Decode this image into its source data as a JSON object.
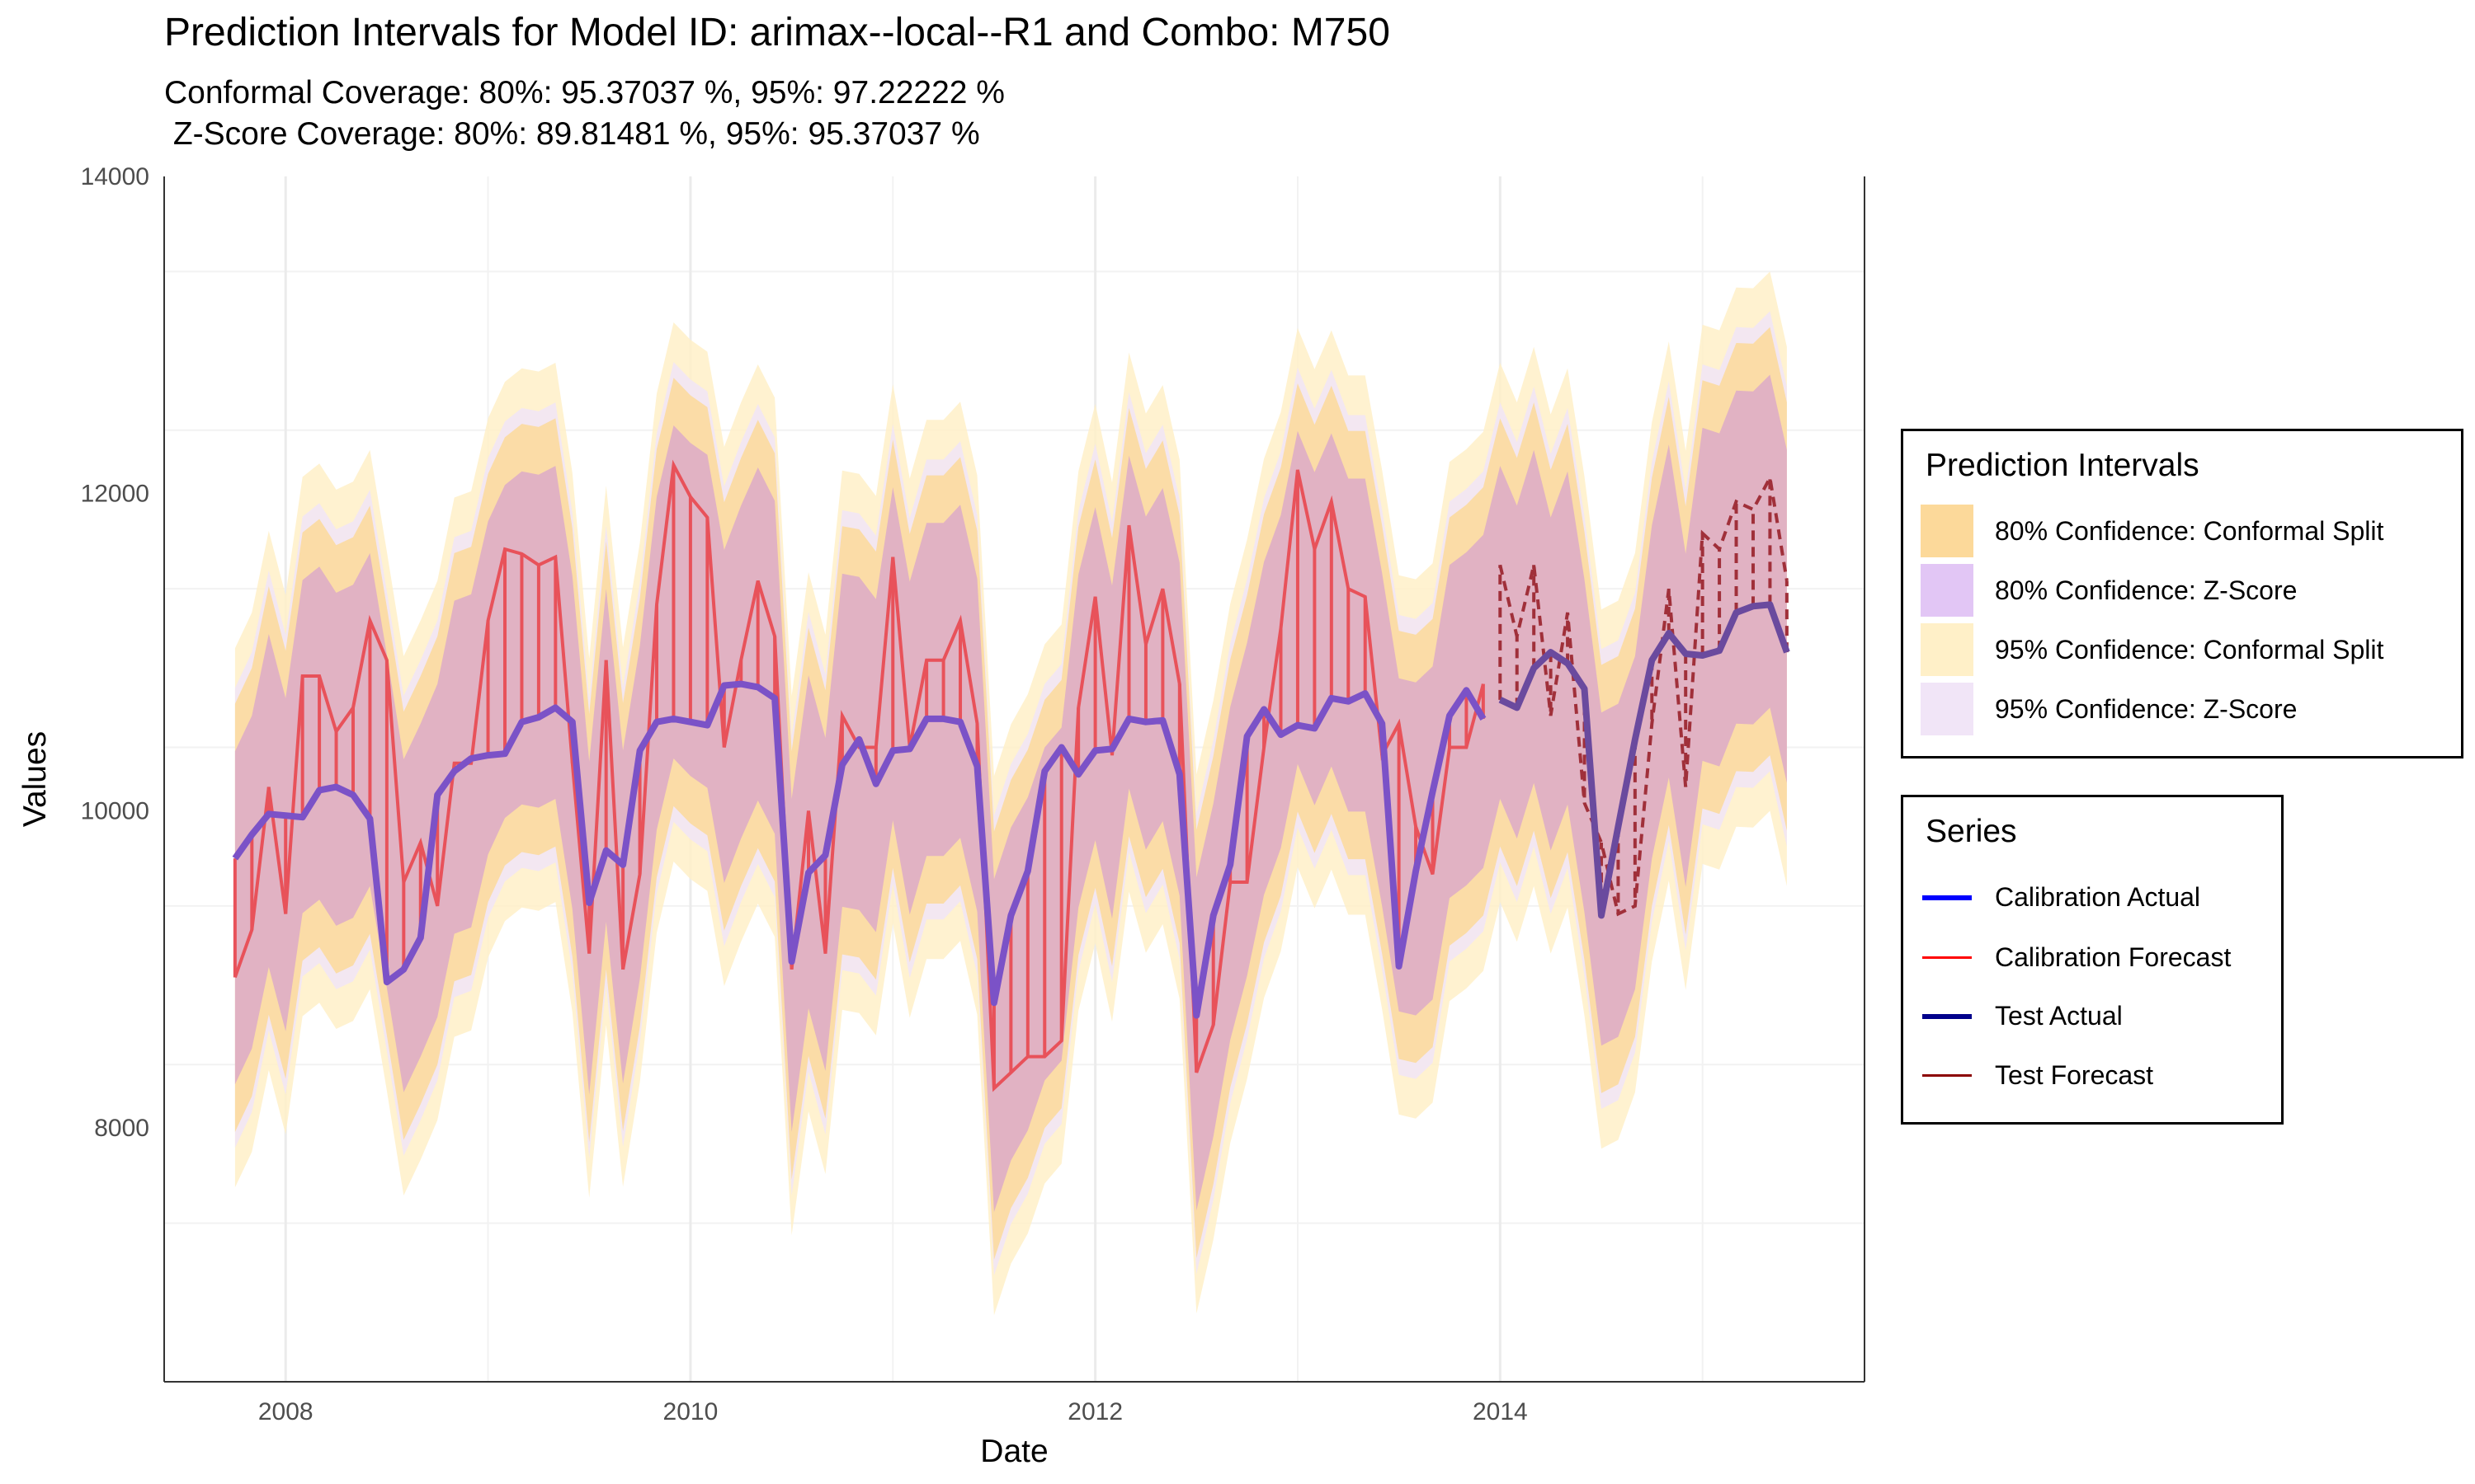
{
  "title": "Prediction Intervals for Model ID: arimax--local--R1 and Combo: M750",
  "subtitle": "Conformal Coverage: 80%: 95.37037 %, 95%: 97.22222 %\n Z-Score Coverage: 80%: 89.81481 %, 95%: 95.37037 %",
  "legend_intervals": {
    "title": "Prediction Intervals",
    "items": [
      {
        "label": "80% Confidence: Conformal Split",
        "color": "#fcd99a"
      },
      {
        "label": "80% Confidence: Z-Score",
        "color": "#e2c6f5"
      },
      {
        "label": "95% Confidence: Conformal Split",
        "color": "#fff0c8"
      },
      {
        "label": "95% Confidence: Z-Score",
        "color": "#f1e5f7"
      }
    ]
  },
  "legend_series": {
    "title": "Series",
    "items": [
      {
        "label": "Calibration Actual",
        "color": "#0000ff"
      },
      {
        "label": "Calibration Forecast",
        "color": "#ff0000"
      },
      {
        "label": "Test Actual",
        "color": "#00008b"
      },
      {
        "label": "Test Forecast",
        "color": "#8b0000"
      }
    ]
  },
  "chart_data": {
    "type": "line",
    "xlabel": "Date",
    "ylabel": "Values",
    "xlim": [
      2007.4,
      2015.8
    ],
    "ylim": [
      6400,
      14000
    ],
    "x_ticks": [
      "2008",
      "2010",
      "2012",
      "2014"
    ],
    "x_tick_values": [
      2008,
      2010,
      2012,
      2014
    ],
    "y_ticks": [
      "8000",
      "10000",
      "12000",
      "14000"
    ],
    "y_tick_values": [
      8000,
      10000,
      12000,
      14000
    ],
    "grid": true,
    "legend_position": "right",
    "actual": {
      "start": 2007.75,
      "step": 0.08333,
      "calibration_end_index": 74,
      "values": [
        9700,
        9850,
        9980,
        9970,
        9960,
        10130,
        10150,
        10100,
        9950,
        8920,
        9000,
        9200,
        10100,
        10250,
        10330,
        10350,
        10360,
        10560,
        10590,
        10650,
        10560,
        9420,
        9750,
        9660,
        10380,
        10560,
        10580,
        10560,
        10540,
        10790,
        10800,
        10780,
        10710,
        9050,
        9610,
        9720,
        10290,
        10450,
        10170,
        10380,
        10390,
        10580,
        10580,
        10560,
        10280,
        8790,
        9340,
        9620,
        10250,
        10400,
        10230,
        10380,
        10390,
        10580,
        10560,
        10570,
        10230,
        8710,
        9340,
        9660,
        10470,
        10640,
        10480,
        10540,
        10520,
        10710,
        10690,
        10740,
        10550,
        9020,
        9620,
        10120,
        10600,
        10760,
        10580,
        10700,
        10650,
        10900,
        11000,
        10930,
        10770,
        9340,
        9900,
        10450,
        10950,
        11120,
        10990,
        10980,
        11010,
        11250,
        11290,
        11300,
        11000
      ]
    },
    "forecast": {
      "start": 2007.75,
      "step": 0.08333,
      "values": [
        8950,
        9250,
        10150,
        9350,
        10850,
        10850,
        10500,
        10650,
        11200,
        10950,
        9550,
        9800,
        9400,
        10300,
        10300,
        11200,
        11650,
        11620,
        11550,
        11600,
        10300,
        9100,
        10950,
        9000,
        9600,
        11300,
        12180,
        11980,
        11850,
        10400,
        10950,
        11450,
        11100,
        9000,
        10000,
        9100,
        10600,
        10400,
        10400,
        11600,
        10400,
        10950,
        10950,
        11200,
        10550,
        8250,
        8350,
        8450,
        8450,
        8550,
        10650,
        11350,
        10350,
        11800,
        11050,
        11400,
        10800,
        8350,
        8650,
        9550,
        9550,
        10400,
        11150,
        12150,
        11650,
        11950,
        11400,
        11350,
        10350,
        10550,
        9900,
        9600,
        10400,
        10400,
        10800,
        11550,
        11100,
        11550,
        10600,
        11250,
        10050,
        9800,
        9350,
        9400,
        10550,
        11400,
        10150,
        11750,
        11650,
        11950,
        11900,
        12100,
        11450
      ],
      "intervals": {
        "z80_halfwidth": 1050,
        "conf80_halfwidth": 1350,
        "z95_halfwidth": 1450,
        "conf95_halfwidth": 1700
      }
    }
  }
}
